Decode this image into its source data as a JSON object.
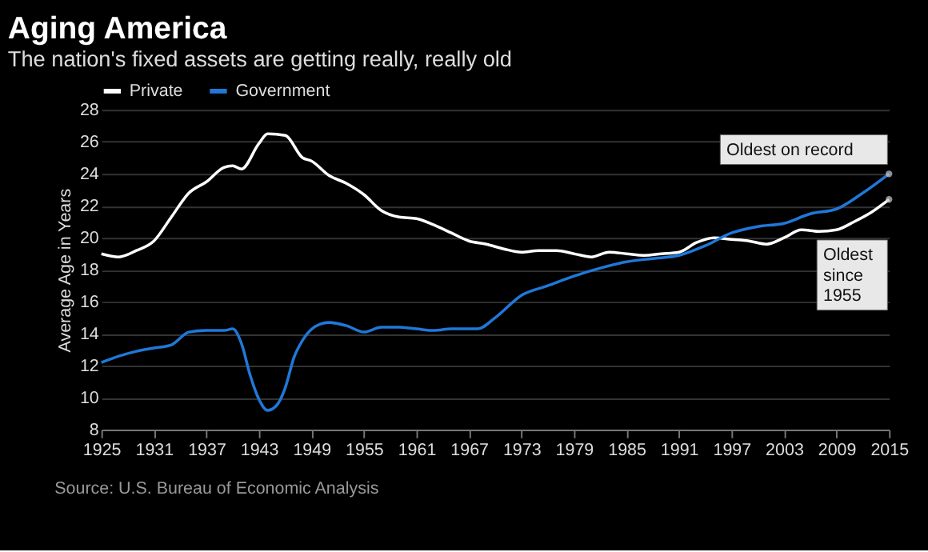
{
  "chart_data": {
    "type": "line",
    "title": "Aging America",
    "subtitle": "The nation's fixed assets are getting really, really old",
    "ylabel": "Average Age in Years",
    "x": [
      1925,
      1927,
      1929,
      1931,
      1933,
      1935,
      1937,
      1939,
      1940,
      1941,
      1943,
      1944,
      1946,
      1948,
      1949,
      1951,
      1953,
      1955,
      1957,
      1959,
      1961,
      1963,
      1965,
      1967,
      1969,
      1971,
      1973,
      1975,
      1977,
      1979,
      1981,
      1983,
      1985,
      1987,
      1989,
      1991,
      1993,
      1995,
      1997,
      1999,
      2001,
      2003,
      2005,
      2007,
      2009,
      2011,
      2013,
      2015
    ],
    "series": [
      {
        "name": "Private",
        "color": "#ffffff",
        "values": [
          19.0,
          18.8,
          19.2,
          19.8,
          21.3,
          22.8,
          23.5,
          24.4,
          24.5,
          24.3,
          25.9,
          26.5,
          26.4,
          25.0,
          24.8,
          23.9,
          23.4,
          22.7,
          21.7,
          21.3,
          21.2,
          20.8,
          20.3,
          19.8,
          19.6,
          19.3,
          19.1,
          19.2,
          19.2,
          19.0,
          18.8,
          19.1,
          19.0,
          18.9,
          19.0,
          19.1,
          19.7,
          20.0,
          19.9,
          19.8,
          19.6,
          20.0,
          20.5,
          20.4,
          20.5,
          21.0,
          21.6,
          22.4
        ]
      },
      {
        "name": "Government",
        "color": "#1f78d8",
        "x": [
          1925,
          1927,
          1929,
          1931,
          1933,
          1935,
          1937,
          1939,
          1940,
          1941,
          1942,
          1943,
          1944,
          1945,
          1946,
          1947,
          1948,
          1950,
          1951,
          1953,
          1955,
          1957,
          1959,
          1961,
          1963,
          1965,
          1968,
          1970,
          1973,
          1976,
          1979,
          1982,
          1985,
          1988,
          1991,
          1994,
          1997,
          2000,
          2003,
          2006,
          2009,
          2012,
          2015
        ],
        "values": [
          12.2,
          12.6,
          12.9,
          13.1,
          13.3,
          14.1,
          14.2,
          14.2,
          14.3,
          13.4,
          11.4,
          9.9,
          9.2,
          9.5,
          10.6,
          12.5,
          13.6,
          14.6,
          14.7,
          14.5,
          14.1,
          14.4,
          14.4,
          14.3,
          14.2,
          14.3,
          14.3,
          15.0,
          16.4,
          17.0,
          17.6,
          18.1,
          18.5,
          18.7,
          18.9,
          19.5,
          20.3,
          20.7,
          20.9,
          21.5,
          21.8,
          22.8,
          24.0
        ]
      }
    ],
    "xlim": [
      1925,
      2015
    ],
    "xticks": [
      1925,
      1931,
      1937,
      1943,
      1949,
      1955,
      1961,
      1967,
      1973,
      1979,
      1985,
      1991,
      1997,
      2003,
      2009,
      2015
    ],
    "ylim": [
      8,
      28
    ],
    "yticks": [
      8,
      10,
      12,
      14,
      16,
      18,
      20,
      22,
      24,
      26,
      28
    ],
    "grid": "y",
    "legend": "top left",
    "annotations": [
      {
        "text": "Oldest on record",
        "x": 2015,
        "y": 24.0
      },
      {
        "text": "Oldest since 1955",
        "x": 2015,
        "y": 22.4
      },
      "Source: U.S. Bureau of Economic Analysis"
    ]
  }
}
